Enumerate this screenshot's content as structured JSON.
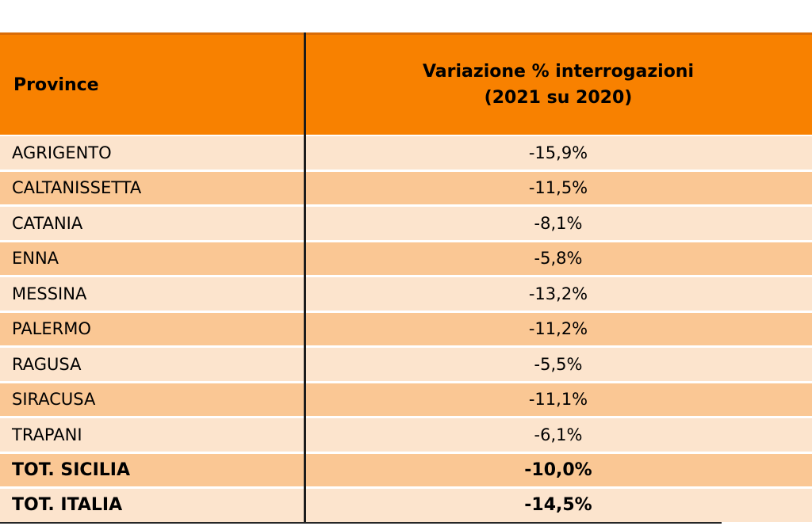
{
  "chart_data": {
    "type": "table",
    "columns": [
      "Province",
      "Variazione % interrogazioni (2021 su 2020)"
    ],
    "rows": [
      [
        "AGRIGENTO",
        "-15,9%"
      ],
      [
        "CALTANISSETTA",
        "-11,5%"
      ],
      [
        "CATANIA",
        "-8,1%"
      ],
      [
        "ENNA",
        "-5,8%"
      ],
      [
        "MESSINA",
        "-13,2%"
      ],
      [
        "PALERMO",
        "-11,2%"
      ],
      [
        "RAGUSA",
        "-5,5%"
      ],
      [
        "SIRACUSA",
        "-11,1%"
      ],
      [
        "TRAPANI",
        "-6,1%"
      ],
      [
        "TOT. SICILIA",
        "-10,0%"
      ],
      [
        "TOT. ITALIA",
        "-14,5%"
      ]
    ],
    "values_numeric_percent": [
      -15.9,
      -11.5,
      -8.1,
      -5.8,
      -13.2,
      -11.2,
      -5.5,
      -11.1,
      -6.1,
      -10.0,
      -14.5
    ],
    "bold_rows": [
      "TOT. SICILIA",
      "TOT. ITALIA"
    ]
  },
  "table": {
    "header": {
      "province_label": "Province",
      "value_label_line1": "Variazione % interrogazioni",
      "value_label_line2": "(2021 su 2020)"
    },
    "rows": [
      {
        "province": "AGRIGENTO",
        "value": "-15,9%",
        "bold": false
      },
      {
        "province": "CALTANISSETTA",
        "value": "-11,5%",
        "bold": false
      },
      {
        "province": "CATANIA",
        "value": "-8,1%",
        "bold": false
      },
      {
        "province": "ENNA",
        "value": "-5,8%",
        "bold": false
      },
      {
        "province": "MESSINA",
        "value": "-13,2%",
        "bold": false
      },
      {
        "province": "PALERMO",
        "value": "-11,2%",
        "bold": false
      },
      {
        "province": "RAGUSA",
        "value": "-5,5%",
        "bold": false
      },
      {
        "province": "SIRACUSA",
        "value": "-11,1%",
        "bold": false
      },
      {
        "province": "TRAPANI",
        "value": "-6,1%",
        "bold": false
      },
      {
        "province": "TOT. SICILIA",
        "value": "-10,0%",
        "bold": true
      },
      {
        "province": "TOT. ITALIA",
        "value": "-14,5%",
        "bold": true
      }
    ],
    "colors": {
      "header_bg": "#F88100",
      "header_top_border": "#D96C07",
      "row_light": "#FCE4CD",
      "row_dark": "#FAC794",
      "column_divider": "#1C1C1C",
      "bottom_border": "#262626",
      "row_gap": "#FFFFFF",
      "text": "#000000"
    }
  }
}
